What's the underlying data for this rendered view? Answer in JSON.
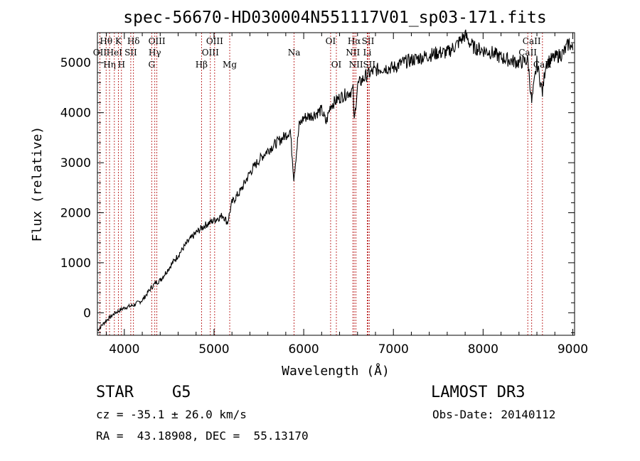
{
  "chart_data": {
    "type": "line",
    "title": "spec-56670-HD030004N551117V01_sp03-171.fits",
    "xlabel": "Wavelength (Å)",
    "ylabel": "Flux (relative)",
    "xlim": [
      3700,
      9020
    ],
    "ylim": [
      -450,
      5600
    ],
    "xticks": [
      4000,
      5000,
      6000,
      7000,
      8000,
      9000
    ],
    "yticks": [
      0,
      1000,
      2000,
      3000,
      4000,
      5000
    ],
    "series": [
      {
        "name": "spectrum",
        "x": [
          3700,
          3800,
          3900,
          4000,
          4100,
          4200,
          4300,
          4350,
          4400,
          4500,
          4600,
          4700,
          4800,
          4900,
          5000,
          5100,
          5150,
          5200,
          5300,
          5400,
          5500,
          5600,
          5700,
          5800,
          5850,
          5890,
          5950,
          6000,
          6100,
          6200,
          6250,
          6300,
          6400,
          6500,
          6550,
          6563,
          6600,
          6700,
          6800,
          6900,
          7000,
          7100,
          7200,
          7300,
          7400,
          7500,
          7600,
          7700,
          7750,
          7800,
          7850,
          7900,
          8000,
          8100,
          8200,
          8300,
          8400,
          8500,
          8542,
          8600,
          8662,
          8700,
          8800,
          8900,
          8960,
          9000
        ],
        "y": [
          -350,
          -150,
          0,
          100,
          150,
          250,
          500,
          600,
          650,
          900,
          1150,
          1400,
          1600,
          1750,
          1850,
          1950,
          1800,
          2200,
          2450,
          2800,
          3050,
          3250,
          3400,
          3550,
          3650,
          2700,
          3750,
          3900,
          3950,
          4050,
          3800,
          4150,
          4300,
          4400,
          4450,
          3800,
          4550,
          4750,
          4850,
          4900,
          4900,
          5000,
          5050,
          5100,
          5150,
          5200,
          5200,
          5350,
          5450,
          5550,
          5400,
          5300,
          5250,
          5200,
          5100,
          5050,
          5000,
          5050,
          4200,
          5000,
          4400,
          5000,
          5100,
          5200,
          5400,
          5250
        ]
      }
    ],
    "line_markers": [
      {
        "label": "Hθ",
        "x": 3797,
        "row": 0
      },
      {
        "label": "OII",
        "x": 3727,
        "row": 1
      },
      {
        "label": "Hη",
        "x": 3835,
        "row": 2
      },
      {
        "label": "HeI",
        "x": 3889,
        "row": 1
      },
      {
        "label": "K",
        "x": 3934,
        "row": 0
      },
      {
        "label": "H",
        "x": 3968,
        "row": 2
      },
      {
        "label": "SII",
        "x": 4072,
        "row": 1
      },
      {
        "label": "Hδ",
        "x": 4102,
        "row": 0
      },
      {
        "label": "OIII",
        "x": 4363,
        "row": 0
      },
      {
        "label": "Hγ",
        "x": 4340,
        "row": 1
      },
      {
        "label": "G",
        "x": 4305,
        "row": 2
      },
      {
        "label": "Hβ",
        "x": 4861,
        "row": 2
      },
      {
        "label": "OIII",
        "x": 5007,
        "row": 0
      },
      {
        "label": "OIII",
        "x": 4959,
        "row": 1
      },
      {
        "label": "Mg",
        "x": 5175,
        "row": 2
      },
      {
        "label": "Na",
        "x": 5893,
        "row": 1
      },
      {
        "label": "OI",
        "x": 6300,
        "row": 0
      },
      {
        "label": "OI",
        "x": 6364,
        "row": 2
      },
      {
        "label": "Hα",
        "x": 6563,
        "row": 0
      },
      {
        "label": "NII",
        "x": 6548,
        "row": 1
      },
      {
        "label": "NII",
        "x": 6583,
        "row": 2
      },
      {
        "label": "SII",
        "x": 6717,
        "row": 0
      },
      {
        "label": "Li",
        "x": 6708,
        "row": 1
      },
      {
        "label": "SII",
        "x": 6731,
        "row": 2
      },
      {
        "label": "CaII",
        "x": 8542,
        "row": 0
      },
      {
        "label": "CaII",
        "x": 8498,
        "row": 1
      },
      {
        "label": "CaII",
        "x": 8662,
        "row": 2
      }
    ]
  },
  "info": {
    "object_class": "STAR",
    "subclass": "G5",
    "survey": "LAMOST DR3",
    "redshift": "cz = -35.1 ± 26.0 km/s",
    "obs_date": "Obs-Date: 20140112",
    "coords": "RA =  43.18908, DEC =  55.13170"
  }
}
